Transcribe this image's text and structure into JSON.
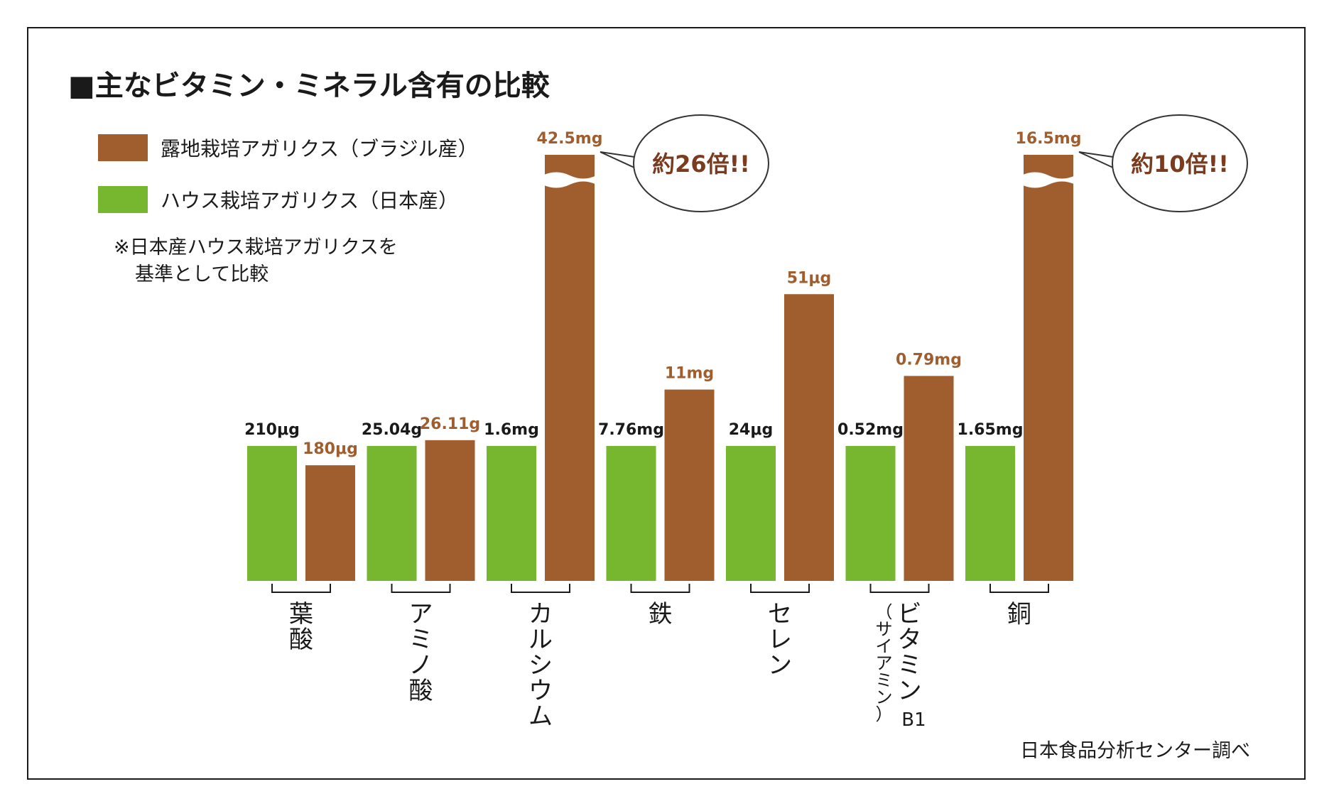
{
  "title": "■主なビタミン・ミネラル含有の比較",
  "legend": [
    {
      "label": "露地栽培アガリクス（ブラジル産）",
      "color": "#a05e2e"
    },
    {
      "label": "ハウス栽培アガリクス（日本産）",
      "color": "#76b72f"
    }
  ],
  "note": [
    "※日本産ハウス栽培アガリクスを",
    "基準として比較"
  ],
  "source": "日本食品分析センター調べ",
  "chart_data": {
    "type": "bar",
    "categories": [
      "葉酸",
      "アミノ酸",
      "カルシウム",
      "鉄",
      "セレン",
      "ビタミンB1（サイアミン）",
      "銅"
    ],
    "category_label_lines": [
      [
        "葉酸"
      ],
      [
        "アミノ酸"
      ],
      [
        "カルシウム"
      ],
      [
        "鉄"
      ],
      [
        "セレン"
      ],
      [
        "ビタミン",
        "（サイアミン）",
        "B1"
      ],
      [
        "銅"
      ]
    ],
    "series": [
      {
        "name": "ハウス栽培アガリクス（日本産）",
        "color": "#76b72f",
        "values": [
          210,
          25.04,
          1.6,
          7.76,
          24,
          0.52,
          1.65
        ],
        "units": [
          "μg",
          "g",
          "mg",
          "mg",
          "μg",
          "mg",
          "mg"
        ],
        "labels": [
          "210μg",
          "25.04g",
          "1.6mg",
          "7.76mg",
          "24μg",
          "0.52mg",
          "1.65mg"
        ]
      },
      {
        "name": "露地栽培アガリクス（ブラジル産）",
        "color": "#a05e2e",
        "values": [
          180,
          26.11,
          42.5,
          11,
          51,
          0.79,
          16.5
        ],
        "units": [
          "μg",
          "g",
          "mg",
          "mg",
          "μg",
          "mg",
          "mg"
        ],
        "labels": [
          "180μg",
          "26.11g",
          "42.5mg",
          "11mg",
          "51μg",
          "0.79mg",
          "16.5mg"
        ],
        "broken_axis": [
          false,
          false,
          true,
          false,
          false,
          false,
          true
        ]
      }
    ],
    "relative_to_japan": [
      0.857,
      1.043,
      26.6,
      1.418,
      2.125,
      1.519,
      10.0
    ],
    "callouts": [
      {
        "category": "カルシウム",
        "text": "約26倍!!"
      },
      {
        "category": "銅",
        "text": "約10倍!!"
      }
    ],
    "label_colors": {
      "japan": "#1a1a1a",
      "brazil": "#a05e2e",
      "callout": "#7a3b1e"
    }
  }
}
